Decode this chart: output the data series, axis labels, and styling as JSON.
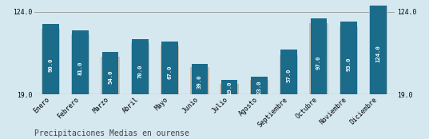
{
  "months": [
    "Enero",
    "Febrero",
    "Marzo",
    "Abril",
    "Mayo",
    "Junio",
    "Julio",
    "Agosto",
    "Septiembre",
    "Octubre",
    "Noviembre",
    "Diciembre"
  ],
  "values": [
    90.0,
    81.0,
    54.0,
    70.0,
    67.0,
    39.0,
    19.0,
    23.0,
    57.0,
    97.0,
    93.0,
    124.0
  ],
  "bg_values": [
    84.0,
    76.0,
    48.0,
    65.0,
    62.0,
    35.0,
    14.0,
    19.0,
    50.0,
    91.0,
    87.0,
    117.0
  ],
  "bar_color": "#1b6b8a",
  "bg_bar_color": "#c5bfb4",
  "background_color": "#d5e8f0",
  "text_color": "#ffffff",
  "axis_label_color": "#444444",
  "ymin": 19.0,
  "ymax": 124.0,
  "title": "Precipitaciones Medias en ourense",
  "title_fontsize": 7.0,
  "value_fontsize": 5.2,
  "tick_fontsize": 5.8,
  "grid_color": "#999999"
}
